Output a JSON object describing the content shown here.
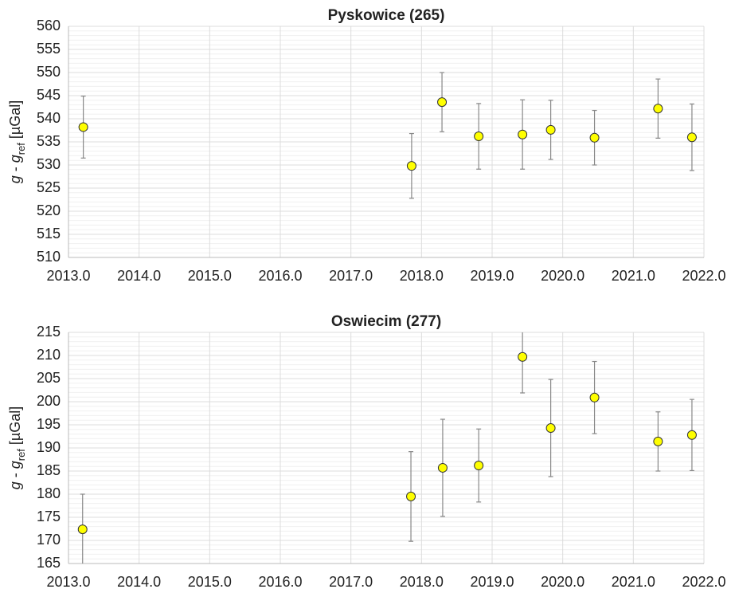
{
  "chart_data": [
    {
      "type": "scatter",
      "title": "Pyskowice (265)",
      "ylabel": [
        "g",
        " - ",
        "g",
        "ref",
        " [µGal]"
      ],
      "x": [
        2013.21,
        2017.86,
        2018.29,
        2018.81,
        2019.43,
        2019.83,
        2020.45,
        2021.35,
        2021.83
      ],
      "values": [
        538.2,
        529.8,
        543.6,
        536.2,
        536.6,
        537.6,
        535.9,
        542.2,
        536.0
      ],
      "errors": [
        6.7,
        7.0,
        6.4,
        7.1,
        7.5,
        6.4,
        5.9,
        6.4,
        7.2
      ],
      "color": "#ffff00",
      "error_color": "#888888",
      "xlim": [
        2013,
        2022
      ],
      "xticks": [
        {
          "value": 2013,
          "label": "2013.0"
        },
        {
          "value": 2014,
          "label": "2014.0"
        },
        {
          "value": 2015,
          "label": "2015.0"
        },
        {
          "value": 2016,
          "label": "2016.0"
        },
        {
          "value": 2017,
          "label": "2017.0"
        },
        {
          "value": 2018,
          "label": "2018.0"
        },
        {
          "value": 2019,
          "label": "2019.0"
        },
        {
          "value": 2020,
          "label": "2020.0"
        },
        {
          "value": 2021,
          "label": "2021.0"
        },
        {
          "value": 2022,
          "label": "2022.0"
        }
      ],
      "ylim": [
        510,
        560
      ],
      "yticks": [
        510,
        515,
        520,
        525,
        530,
        535,
        540,
        545,
        550,
        555,
        560
      ],
      "grid": true
    },
    {
      "type": "scatter",
      "title": "Oswiecim (277)",
      "ylabel": [
        "g",
        " - ",
        "g",
        "ref",
        " [µGal]"
      ],
      "x": [
        2013.2,
        2017.85,
        2018.3,
        2018.81,
        2019.43,
        2019.83,
        2020.45,
        2021.35,
        2021.83
      ],
      "values": [
        172.4,
        179.5,
        185.7,
        186.2,
        209.7,
        194.3,
        200.9,
        191.4,
        192.8
      ],
      "errors": [
        7.6,
        9.7,
        10.5,
        7.9,
        7.8,
        10.5,
        7.8,
        6.4,
        7.7
      ],
      "color": "#ffff00",
      "error_color": "#888888",
      "xlim": [
        2013,
        2022
      ],
      "xticks": [
        {
          "value": 2013,
          "label": "2013.0"
        },
        {
          "value": 2014,
          "label": "2014.0"
        },
        {
          "value": 2015,
          "label": "2015.0"
        },
        {
          "value": 2016,
          "label": "2016.0"
        },
        {
          "value": 2017,
          "label": "2017.0"
        },
        {
          "value": 2018,
          "label": "2018.0"
        },
        {
          "value": 2019,
          "label": "2019.0"
        },
        {
          "value": 2020,
          "label": "2020.0"
        },
        {
          "value": 2021,
          "label": "2021.0"
        },
        {
          "value": 2022,
          "label": "2022.0"
        }
      ],
      "ylim": [
        165,
        215
      ],
      "yticks": [
        165,
        170,
        175,
        180,
        185,
        190,
        195,
        200,
        205,
        210,
        215
      ],
      "grid": true
    }
  ]
}
